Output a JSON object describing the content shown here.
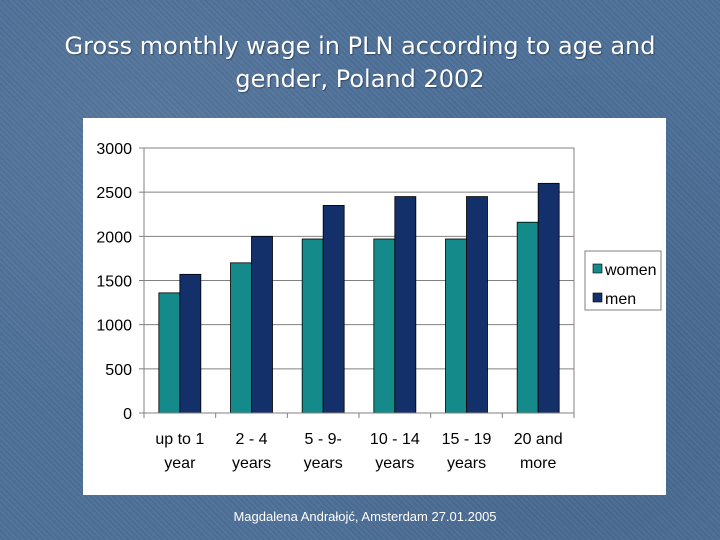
{
  "slide": {
    "title": "Gross monthly wage in PLN according to age and gender, Poland 2002",
    "footer": "Magdalena Andrałojć, Amsterdam 27.01.2005"
  },
  "colors": {
    "women": "#158a8a",
    "men": "#14306b"
  },
  "chart_data": {
    "type": "bar",
    "title": "",
    "xlabel": "",
    "ylabel": "",
    "categories": [
      [
        "up to 1",
        "year"
      ],
      [
        "2 - 4",
        "years"
      ],
      [
        "5 - 9-",
        "years"
      ],
      [
        "10 - 14",
        "years"
      ],
      [
        "15 - 19",
        "years"
      ],
      [
        "20 and",
        "more"
      ]
    ],
    "series": [
      {
        "name": "women",
        "values": [
          1360,
          1700,
          1970,
          1970,
          1970,
          2160
        ]
      },
      {
        "name": "men",
        "values": [
          1570,
          2000,
          2350,
          2450,
          2450,
          2600
        ]
      }
    ],
    "ylim": [
      0,
      3000
    ],
    "yticks": [
      0,
      500,
      1000,
      1500,
      2000,
      2500,
      3000
    ],
    "grid": true,
    "legend_position": "right"
  }
}
